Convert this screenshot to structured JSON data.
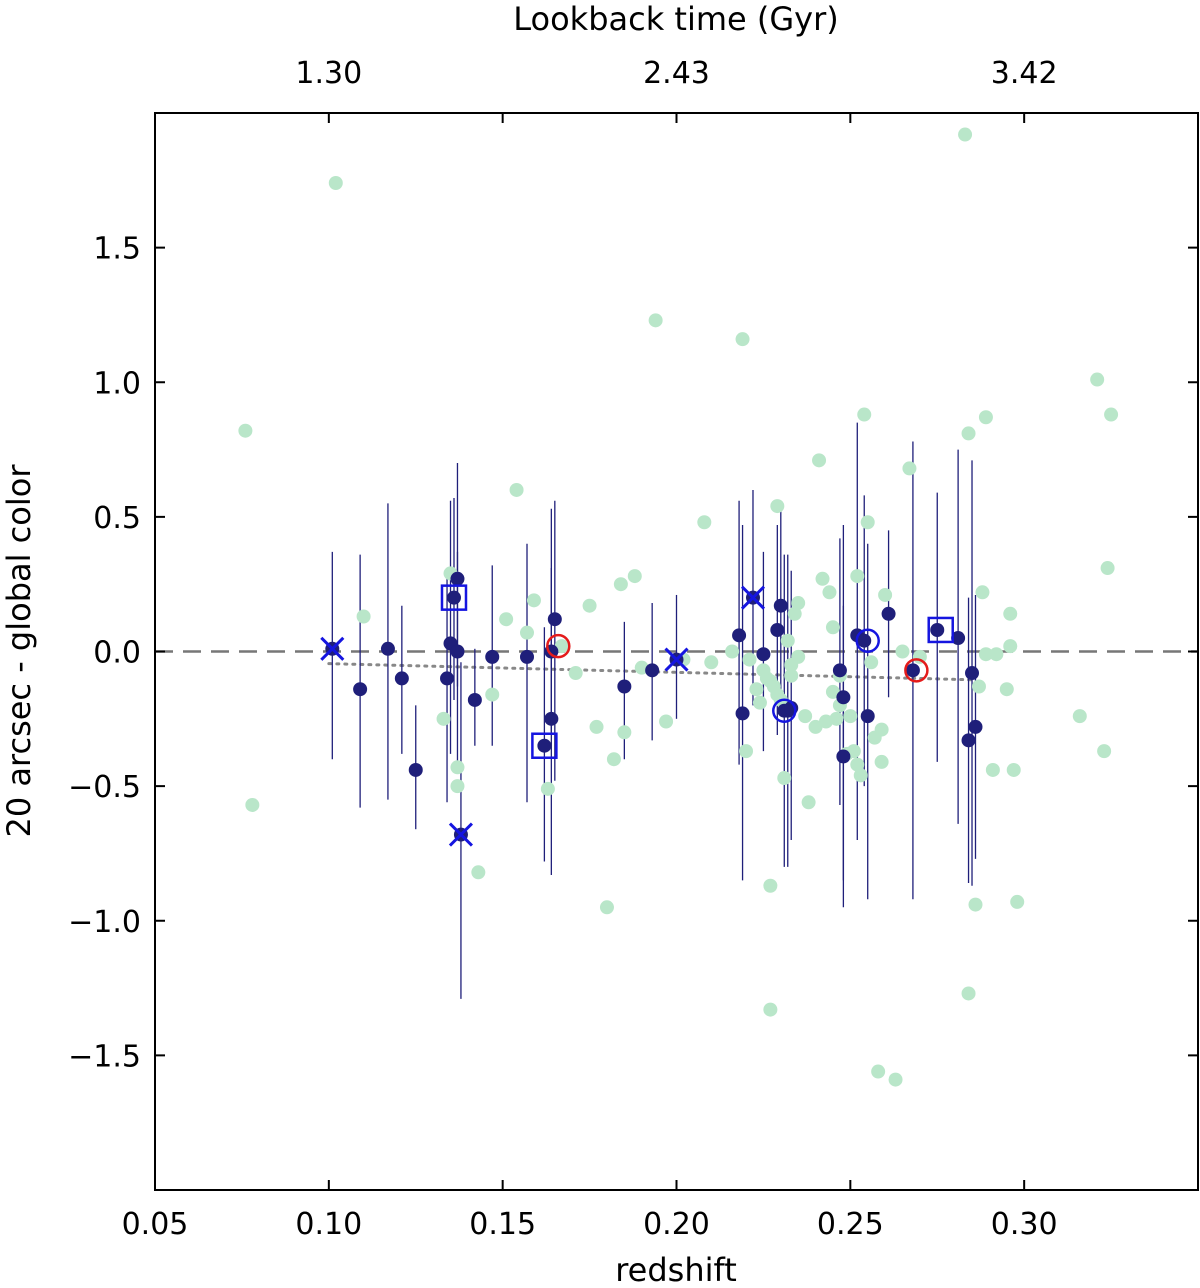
{
  "chart_data": {
    "type": "scatter",
    "xlabel": "redshift",
    "ylabel": "20 arcsec - global color",
    "top_axis_label": "Lookback time (Gyr)",
    "xlim": [
      0.05,
      0.35
    ],
    "ylim": [
      -2.0,
      2.0
    ],
    "x_ticks": [
      0.05,
      0.1,
      0.15,
      0.2,
      0.25,
      0.3
    ],
    "x_tick_labels": [
      "0.05",
      "0.10",
      "0.15",
      "0.20",
      "0.25",
      "0.30"
    ],
    "y_ticks": [
      -1.5,
      -1.0,
      -0.5,
      0.0,
      0.5,
      1.0,
      1.5
    ],
    "y_tick_labels": [
      "−1.5",
      "−1.0",
      "−0.5",
      "0.0",
      "0.5",
      "1.0",
      "1.5"
    ],
    "top_ticks": [
      0.1,
      0.2,
      0.3
    ],
    "top_tick_labels": [
      "1.30",
      "2.43",
      "3.42"
    ],
    "reference_line": {
      "y": 0.0,
      "style": "dashed",
      "color": "#777777"
    },
    "trend_line": {
      "x": [
        0.1,
        0.285
      ],
      "y": [
        -0.045,
        -0.105
      ],
      "style": "dotted",
      "color": "#888888"
    },
    "series": [
      {
        "marker": "filled-circle",
        "color": "#b9e6c9",
        "points": [
          [
            0.076,
            0.82
          ],
          [
            0.078,
            -0.57
          ],
          [
            0.102,
            1.74
          ],
          [
            0.11,
            0.13
          ],
          [
            0.133,
            -0.25
          ],
          [
            0.135,
            0.29
          ],
          [
            0.137,
            -0.43
          ],
          [
            0.137,
            -0.5
          ],
          [
            0.143,
            -0.82
          ],
          [
            0.147,
            -0.16
          ],
          [
            0.151,
            0.12
          ],
          [
            0.154,
            0.6
          ],
          [
            0.157,
            0.07
          ],
          [
            0.159,
            0.19
          ],
          [
            0.163,
            -0.51
          ],
          [
            0.167,
            0.02
          ],
          [
            0.171,
            -0.08
          ],
          [
            0.175,
            0.17
          ],
          [
            0.177,
            -0.28
          ],
          [
            0.18,
            -0.95
          ],
          [
            0.182,
            -0.4
          ],
          [
            0.184,
            0.25
          ],
          [
            0.185,
            -0.3
          ],
          [
            0.188,
            0.28
          ],
          [
            0.19,
            -0.06
          ],
          [
            0.194,
            1.23
          ],
          [
            0.197,
            -0.26
          ],
          [
            0.202,
            -0.03
          ],
          [
            0.208,
            0.48
          ],
          [
            0.21,
            -0.04
          ],
          [
            0.216,
            0.0
          ],
          [
            0.219,
            1.16
          ],
          [
            0.22,
            -0.37
          ],
          [
            0.221,
            -0.03
          ],
          [
            0.223,
            -0.14
          ],
          [
            0.224,
            -0.19
          ],
          [
            0.225,
            -0.07
          ],
          [
            0.226,
            -0.1
          ],
          [
            0.227,
            -0.87
          ],
          [
            0.227,
            -0.11
          ],
          [
            0.228,
            -0.13
          ],
          [
            0.229,
            -0.16
          ],
          [
            0.229,
            0.54
          ],
          [
            0.23,
            -0.18
          ],
          [
            0.231,
            -0.47
          ],
          [
            0.232,
            0.04
          ],
          [
            0.233,
            -0.05
          ],
          [
            0.233,
            -0.09
          ],
          [
            0.234,
            0.14
          ],
          [
            0.235,
            0.18
          ],
          [
            0.235,
            -0.02
          ],
          [
            0.237,
            -0.24
          ],
          [
            0.238,
            -0.56
          ],
          [
            0.24,
            -0.28
          ],
          [
            0.241,
            0.71
          ],
          [
            0.242,
            0.27
          ],
          [
            0.243,
            -0.26
          ],
          [
            0.244,
            0.22
          ],
          [
            0.245,
            0.09
          ],
          [
            0.245,
            -0.15
          ],
          [
            0.246,
            -0.25
          ],
          [
            0.247,
            -0.2
          ],
          [
            0.247,
            -0.09
          ],
          [
            0.249,
            -0.38
          ],
          [
            0.25,
            -0.24
          ],
          [
            0.251,
            -0.37
          ],
          [
            0.252,
            0.28
          ],
          [
            0.252,
            -0.42
          ],
          [
            0.253,
            -0.46
          ],
          [
            0.254,
            0.88
          ],
          [
            0.255,
            0.48
          ],
          [
            0.256,
            -0.04
          ],
          [
            0.257,
            -0.32
          ],
          [
            0.258,
            -1.56
          ],
          [
            0.259,
            -0.41
          ],
          [
            0.259,
            -0.29
          ],
          [
            0.26,
            0.21
          ],
          [
            0.263,
            -1.59
          ],
          [
            0.265,
            0.0
          ],
          [
            0.267,
            0.68
          ],
          [
            0.27,
            -0.02
          ],
          [
            0.283,
            1.92
          ],
          [
            0.284,
            0.81
          ],
          [
            0.284,
            -1.27
          ],
          [
            0.286,
            -0.94
          ],
          [
            0.287,
            -0.13
          ],
          [
            0.288,
            0.22
          ],
          [
            0.289,
            0.87
          ],
          [
            0.289,
            -0.01
          ],
          [
            0.291,
            -0.44
          ],
          [
            0.292,
            -0.01
          ],
          [
            0.295,
            -0.14
          ],
          [
            0.296,
            0.14
          ],
          [
            0.296,
            0.02
          ],
          [
            0.297,
            -0.44
          ],
          [
            0.298,
            -0.93
          ],
          [
            0.316,
            -0.24
          ],
          [
            0.321,
            1.01
          ],
          [
            0.323,
            -0.37
          ],
          [
            0.324,
            0.31
          ],
          [
            0.325,
            0.88
          ],
          [
            0.227,
            -1.33
          ]
        ]
      },
      {
        "marker": "filled-circle-errorbar",
        "color": "#1f1f7a",
        "points": [
          [
            0.101,
            0.01,
            -0.4,
            0.37
          ],
          [
            0.109,
            -0.14,
            -0.58,
            0.36
          ],
          [
            0.117,
            0.01,
            -0.55,
            0.55
          ],
          [
            0.121,
            -0.1,
            -0.38,
            0.17
          ],
          [
            0.125,
            -0.44,
            -0.66,
            -0.2
          ],
          [
            0.134,
            -0.1,
            -0.56,
            0.31
          ],
          [
            0.135,
            0.03,
            -0.38,
            0.56
          ],
          [
            0.136,
            0.2,
            -0.18,
            0.57
          ],
          [
            0.137,
            0.0,
            -0.45,
            0.37
          ],
          [
            0.137,
            0.27,
            -0.13,
            0.7
          ],
          [
            0.138,
            -0.68,
            -1.29,
            -0.04
          ],
          [
            0.142,
            -0.18,
            -0.35,
            0.01
          ],
          [
            0.147,
            -0.02,
            -0.35,
            0.32
          ],
          [
            0.157,
            -0.02,
            -0.56,
            0.4
          ],
          [
            0.162,
            -0.35,
            -0.78,
            0.09
          ],
          [
            0.164,
            -0.25,
            -0.83,
            0.53
          ],
          [
            0.164,
            0.0,
            -0.3,
            0.31
          ],
          [
            0.165,
            0.12,
            -0.48,
            0.56
          ],
          [
            0.185,
            -0.13,
            -0.4,
            0.11
          ],
          [
            0.193,
            -0.07,
            -0.33,
            0.18
          ],
          [
            0.2,
            -0.03,
            -0.25,
            0.21
          ],
          [
            0.218,
            0.06,
            -0.42,
            0.56
          ],
          [
            0.219,
            -0.23,
            -0.85,
            0.47
          ],
          [
            0.222,
            0.2,
            -0.2,
            0.6
          ],
          [
            0.225,
            -0.01,
            -0.37,
            0.37
          ],
          [
            0.229,
            0.08,
            -0.31,
            0.47
          ],
          [
            0.23,
            0.17,
            -0.2,
            0.55
          ],
          [
            0.231,
            -0.22,
            -0.8,
            0.36
          ],
          [
            0.232,
            -0.22,
            -0.8,
            0.36
          ],
          [
            0.233,
            -0.21,
            -0.7,
            0.3
          ],
          [
            0.247,
            -0.07,
            -0.57,
            0.42
          ],
          [
            0.248,
            -0.17,
            -0.85,
            0.47
          ],
          [
            0.248,
            -0.39,
            -0.95,
            0.17
          ],
          [
            0.252,
            0.06,
            -0.7,
            0.85
          ],
          [
            0.254,
            0.04,
            -0.5,
            0.58
          ],
          [
            0.255,
            -0.24,
            -0.92,
            0.4
          ],
          [
            0.261,
            0.14,
            -0.17,
            0.45
          ],
          [
            0.268,
            -0.07,
            -0.92,
            0.78
          ],
          [
            0.275,
            0.08,
            -0.41,
            0.59
          ],
          [
            0.281,
            0.05,
            -0.64,
            0.75
          ],
          [
            0.284,
            -0.33,
            -0.86,
            0.2
          ],
          [
            0.285,
            -0.08,
            -0.87,
            0.71
          ],
          [
            0.286,
            -0.28,
            -0.77,
            0.21
          ]
        ]
      },
      {
        "marker": "open-square",
        "color": "#1515e0",
        "points": [
          [
            0.136,
            0.2
          ],
          [
            0.162,
            -0.35
          ],
          [
            0.276,
            0.08
          ]
        ]
      },
      {
        "marker": "x",
        "color": "#1515e0",
        "points": [
          [
            0.101,
            0.01
          ],
          [
            0.138,
            -0.68
          ],
          [
            0.2,
            -0.03
          ],
          [
            0.222,
            0.2
          ]
        ]
      },
      {
        "marker": "open-circle",
        "color": "#1515e0",
        "points": [
          [
            0.231,
            -0.22
          ],
          [
            0.255,
            0.04
          ]
        ]
      },
      {
        "marker": "open-circle",
        "color": "#e41b1b",
        "points": [
          [
            0.166,
            0.02
          ],
          [
            0.269,
            -0.07
          ]
        ]
      }
    ]
  }
}
